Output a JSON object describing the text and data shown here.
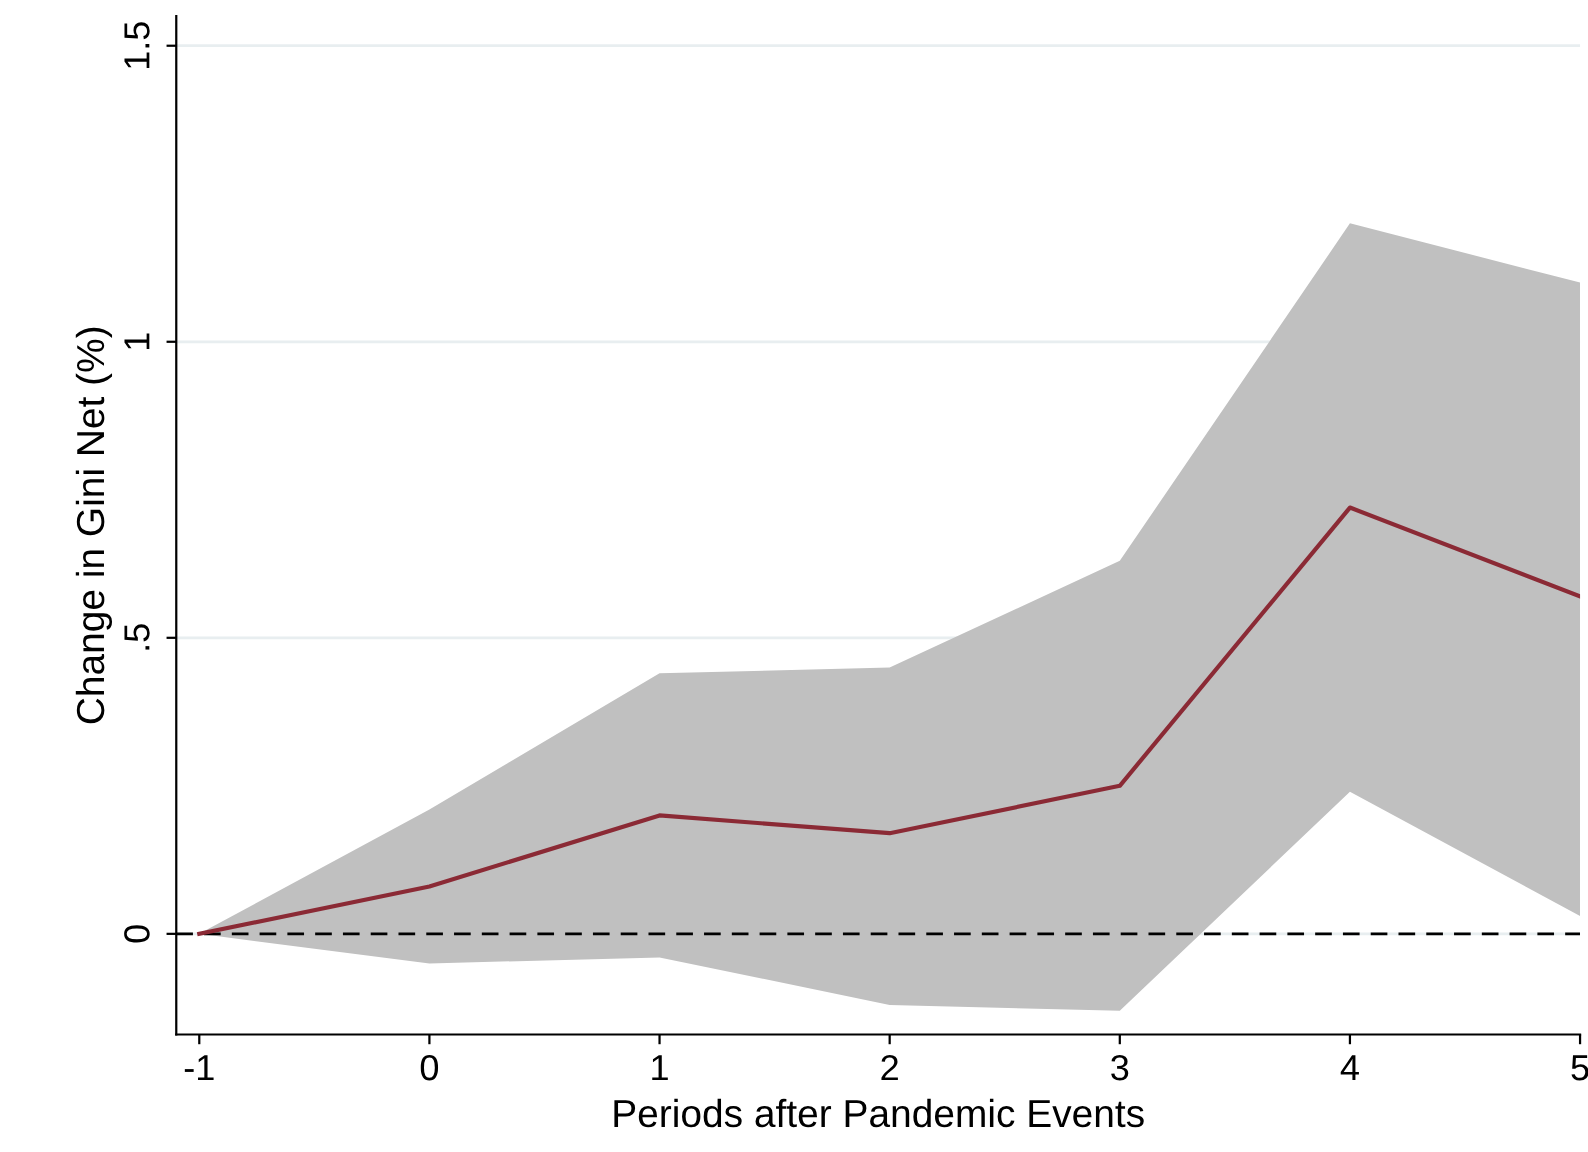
{
  "chart_data": {
    "type": "line",
    "xlabel": "Periods after Pandemic Events",
    "ylabel": "Change in Gini Net (%)",
    "x": [
      -1,
      0,
      1,
      2,
      3,
      4,
      5
    ],
    "series": [
      {
        "color": "#8b2a35",
        "values": [
          0,
          0.08,
          0.2,
          0.17,
          0.25,
          0.72,
          0.57
        ],
        "lower": [
          0,
          -0.05,
          -0.04,
          -0.12,
          -0.13,
          0.24,
          0.03
        ],
        "upper": [
          0,
          0.21,
          0.44,
          0.45,
          0.63,
          1.2,
          1.1
        ]
      }
    ],
    "xlim": [
      -1.1,
      5
    ],
    "xticks": [
      -1,
      0,
      1,
      2,
      3,
      4,
      5
    ],
    "ylim": [
      -0.17,
      1.55
    ],
    "yticks": [
      0,
      {
        "value": 0.5,
        "label": ".5"
      },
      1,
      1.5
    ],
    "grid": "y",
    "legend": false,
    "ref_lines": [
      {
        "axis": "y",
        "value": 0,
        "color": "#000000",
        "line_style": "dashed"
      }
    ]
  }
}
